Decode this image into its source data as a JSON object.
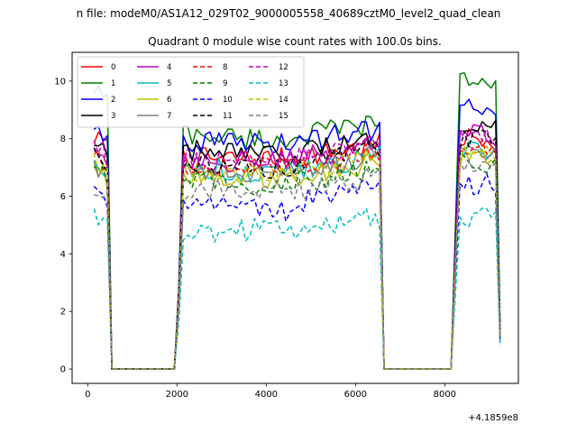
{
  "chart_data": {
    "type": "line",
    "suptitle": "n file: modeM0/AS1A12_029T02_9000005558_40689cztM0_level2_quad_clean",
    "title": "Quadrant 0 module wise count rates with 100.0s bins.",
    "xlabel": "",
    "ylabel": "",
    "x_offset_label": "+4.1859e8",
    "xlim": [
      -350,
      9650
    ],
    "ylim": [
      -0.5,
      11.0
    ],
    "xticks": [
      0,
      2000,
      4000,
      6000,
      8000
    ],
    "xtick_labels": [
      "0",
      "2000",
      "4000",
      "6000",
      "8000"
    ],
    "yticks": [
      0,
      2,
      4,
      6,
      8,
      10
    ],
    "ytick_labels": [
      "0",
      "2",
      "4",
      "6",
      "8",
      "10"
    ],
    "grid": false,
    "legend": {
      "placement": "top-left",
      "columns": 4
    },
    "x_segments": [
      {
        "start": 140,
        "end": 440,
        "step": 100
      },
      {
        "start": 540,
        "end": 1940,
        "step": 100
      },
      {
        "start": 2040,
        "end": 6440,
        "step": 100
      },
      {
        "start": 6540,
        "end": 8240,
        "step": 100
      },
      {
        "start": 8340,
        "end": 9240,
        "step": 100
      }
    ],
    "gaps": [
      {
        "start": 540,
        "end": 1940
      },
      {
        "start": 6640,
        "end": 8140
      }
    ],
    "edges": [
      {
        "x": 540,
        "frac": 0.0
      },
      {
        "x": 2040,
        "frac": 0.35
      },
      {
        "x": 6640,
        "frac": 0.0
      },
      {
        "x": 8240,
        "frac": 0.5
      },
      {
        "x": 9240,
        "frac": 0.15
      }
    ],
    "series": [
      {
        "name": "0",
        "color": "#ff0000",
        "dash": "solid",
        "a": 7.3,
        "b": 7.3,
        "c": 8.0,
        "start": 7.9
      },
      {
        "name": "1",
        "color": "#008000",
        "dash": "solid",
        "a": 8.2,
        "b": 7.9,
        "c": 10.0,
        "start": 9.6
      },
      {
        "name": "2",
        "color": "#0000ff",
        "dash": "solid",
        "a": 7.9,
        "b": 7.8,
        "c": 9.2,
        "start": 8.3
      },
      {
        "name": "3",
        "color": "#000000",
        "dash": "solid",
        "a": 7.6,
        "b": 7.3,
        "c": 8.6,
        "start": 7.7
      },
      {
        "name": "4",
        "color": "#bf00bf",
        "dash": "solid",
        "a": 7.3,
        "b": 7.2,
        "c": 8.1,
        "start": 7.5
      },
      {
        "name": "5",
        "color": "#00bfbf",
        "dash": "solid",
        "a": 7.0,
        "b": 6.8,
        "c": 7.6,
        "start": 7.1
      },
      {
        "name": "6",
        "color": "#bfbf00",
        "dash": "solid",
        "a": 6.8,
        "b": 6.6,
        "c": 7.4,
        "start": 6.9
      },
      {
        "name": "7",
        "color": "#808080",
        "dash": "solid",
        "a": 7.0,
        "b": 6.8,
        "c": 7.6,
        "start": 7.0
      },
      {
        "name": "8",
        "color": "#ff0000",
        "dash": "dash",
        "a": 7.1,
        "b": 7.0,
        "c": 7.8,
        "start": 7.2
      },
      {
        "name": "9",
        "color": "#008000",
        "dash": "dash",
        "a": 6.6,
        "b": 6.3,
        "c": 7.2,
        "start": 6.7
      },
      {
        "name": "10",
        "color": "#0000ff",
        "dash": "dash",
        "a": 6.0,
        "b": 5.5,
        "c": 6.4,
        "start": 6.0
      },
      {
        "name": "11",
        "color": "#000000",
        "dash": "dash",
        "a": 7.2,
        "b": 7.0,
        "c": 7.9,
        "start": 7.3
      },
      {
        "name": "12",
        "color": "#bf00bf",
        "dash": "dash",
        "a": 7.3,
        "b": 7.2,
        "c": 8.0,
        "start": 7.5
      },
      {
        "name": "13",
        "color": "#00bfbf",
        "dash": "dash",
        "a": 4.7,
        "b": 4.9,
        "c": 5.3,
        "start": 5.1
      },
      {
        "name": "14",
        "color": "#bfbf00",
        "dash": "dash",
        "a": 6.9,
        "b": 6.8,
        "c": 7.5,
        "start": 7.0
      },
      {
        "name": "15",
        "color": "#808080",
        "dash": "dash",
        "a": 6.1,
        "b": 6.3,
        "c": 7.0,
        "start": 6.3
      }
    ]
  }
}
